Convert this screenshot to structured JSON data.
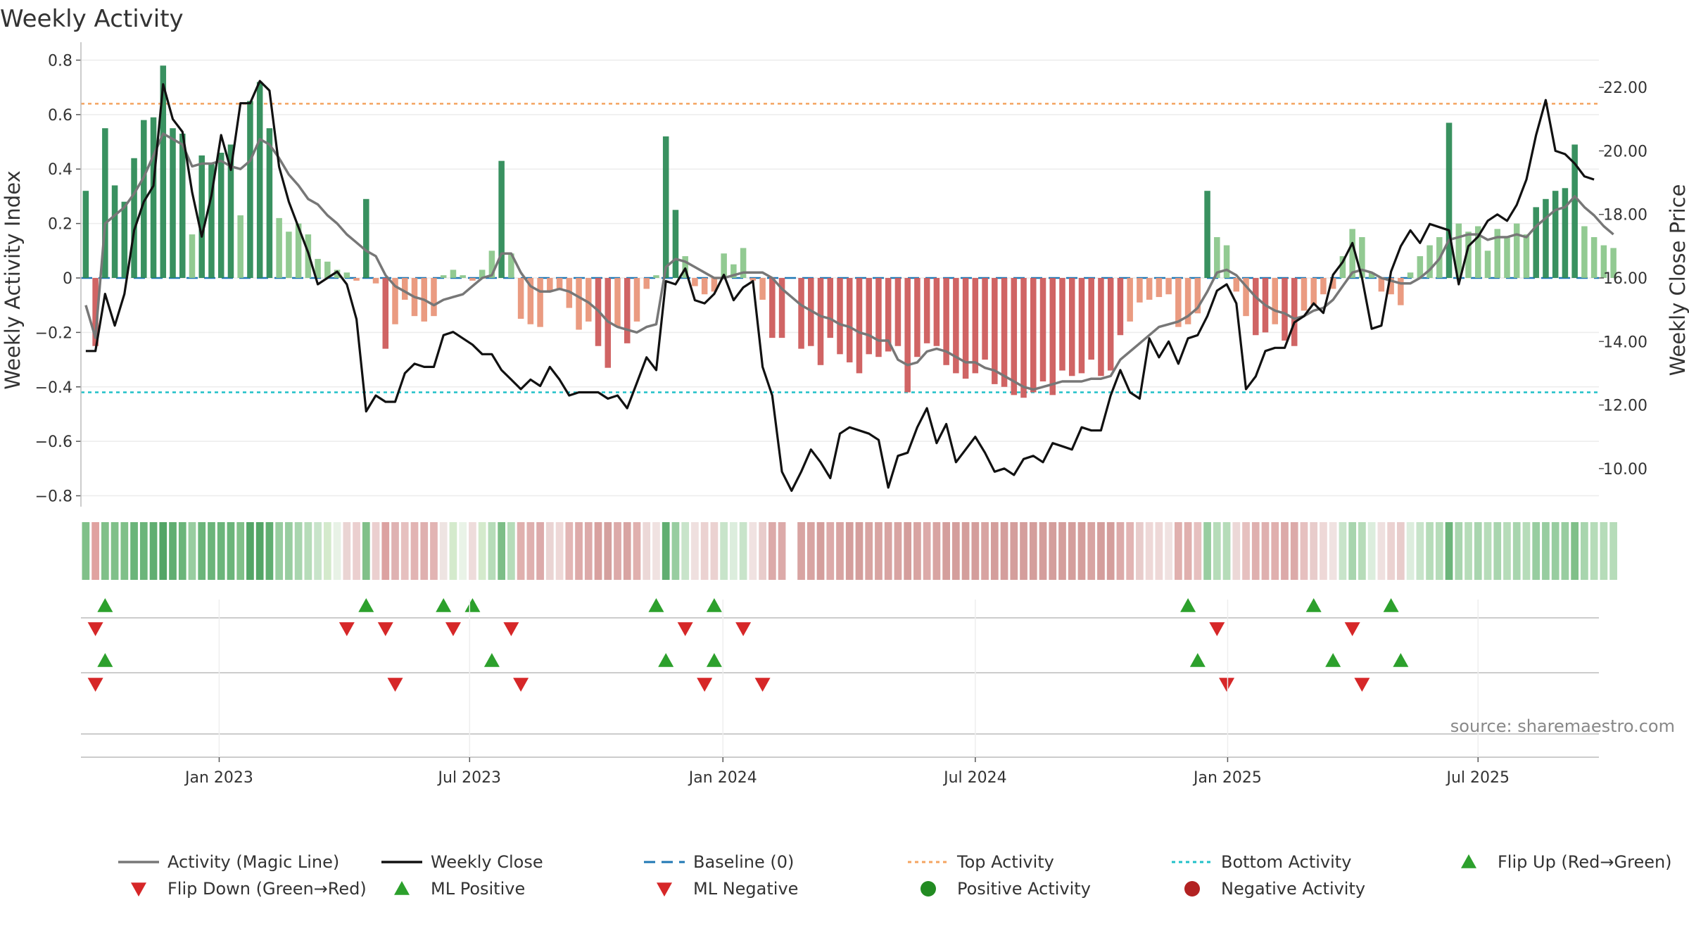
{
  "chart_data": {
    "type": "bar",
    "title": "Weekly Activity",
    "ylabel": "Weekly Activity Index",
    "y2label": "Weekly Close Price",
    "ylim": [
      -0.84,
      0.84
    ],
    "y2lim": [
      8.8,
      23.2
    ],
    "yticks": [
      0.8,
      0.6,
      0.4,
      0.2,
      0,
      -0.2,
      -0.4,
      -0.6,
      -0.8
    ],
    "ytick_labels": [
      "0.8",
      "0.6",
      "0.4",
      "0.2",
      "0",
      "−0.2",
      "−0.4",
      "−0.6",
      "−0.8"
    ],
    "y2ticks": [
      22,
      20,
      18,
      16,
      14,
      12,
      10
    ],
    "y2tick_labels": [
      "22.00",
      "20.00",
      "18.00",
      "16.00",
      "14.00",
      "12.00",
      "10.00"
    ],
    "x_range": [
      0,
      157
    ],
    "xticks": [
      {
        "label": "Jan 2023",
        "x": 14.3
      },
      {
        "label": "Jul 2023",
        "x": 40.2
      },
      {
        "label": "Jan 2024",
        "x": 66.4
      },
      {
        "label": "Jul 2024",
        "x": 92.5
      },
      {
        "label": "Jan 2025",
        "x": 118.6
      },
      {
        "label": "Jul 2025",
        "x": 144.5
      }
    ],
    "top_activity": 0.64,
    "bottom_activity": -0.42,
    "baseline": 0,
    "series": [
      {
        "name": "Weekly Activity",
        "values": [
          0.32,
          -0.25,
          0.55,
          0.34,
          0.28,
          0.44,
          0.58,
          0.59,
          0.78,
          0.55,
          0.53,
          0.16,
          0.45,
          0.42,
          0.46,
          0.49,
          0.23,
          0.65,
          0.72,
          0.55,
          0.22,
          0.17,
          0.2,
          0.16,
          0.07,
          0.06,
          0.03,
          0.02,
          -0.01,
          0.29,
          -0.02,
          -0.26,
          -0.17,
          -0.08,
          -0.14,
          -0.16,
          -0.14,
          0.01,
          0.03,
          0.01,
          -0.01,
          0.03,
          0.1,
          0.43,
          0.09,
          -0.15,
          -0.17,
          -0.18,
          -0.05,
          -0.04,
          -0.11,
          -0.19,
          -0.16,
          -0.25,
          -0.33,
          -0.18,
          -0.24,
          -0.16,
          -0.04,
          0.01,
          0.52,
          0.25,
          0.08,
          -0.03,
          -0.06,
          -0.05,
          0.09,
          0.05,
          0.11,
          -0.01,
          -0.08,
          -0.22,
          -0.22,
          null,
          -0.26,
          -0.25,
          -0.32,
          -0.22,
          -0.28,
          -0.31,
          -0.35,
          -0.28,
          -0.29,
          -0.27,
          -0.25,
          -0.42,
          -0.29,
          -0.24,
          -0.25,
          -0.32,
          -0.35,
          -0.37,
          -0.35,
          -0.3,
          -0.39,
          -0.4,
          -0.43,
          -0.44,
          -0.42,
          -0.38,
          -0.43,
          -0.34,
          -0.36,
          -0.35,
          -0.3,
          -0.36,
          -0.34,
          -0.21,
          -0.16,
          -0.09,
          -0.08,
          -0.07,
          -0.06,
          -0.18,
          -0.17,
          -0.13,
          0.32,
          0.15,
          0.12,
          -0.05,
          -0.14,
          -0.21,
          -0.2,
          -0.17,
          -0.23,
          -0.25,
          -0.12,
          -0.1,
          -0.06,
          -0.04,
          0.08,
          0.18,
          0.15,
          0.02,
          -0.05,
          -0.06,
          -0.1,
          0.02,
          0.08,
          0.12,
          0.15,
          0.57,
          0.2,
          0.17,
          0.19,
          0.1,
          0.18,
          0.15,
          0.2,
          0.16,
          0.26,
          0.29,
          0.32,
          0.33,
          0.49,
          0.19,
          0.15,
          0.12,
          0.11
        ]
      },
      {
        "name": "Activity (Magic Line)",
        "values": [
          -0.1,
          -0.22,
          0.2,
          0.23,
          0.26,
          0.31,
          0.37,
          0.45,
          0.53,
          0.51,
          0.49,
          0.41,
          0.42,
          0.42,
          0.43,
          0.41,
          0.4,
          0.43,
          0.51,
          0.49,
          0.44,
          0.38,
          0.34,
          0.29,
          0.27,
          0.23,
          0.2,
          0.16,
          0.13,
          0.1,
          0.08,
          0.01,
          -0.03,
          -0.05,
          -0.07,
          -0.08,
          -0.1,
          -0.08,
          -0.07,
          -0.06,
          -0.03,
          0,
          0.01,
          0.09,
          0.09,
          0.02,
          -0.03,
          -0.05,
          -0.05,
          -0.04,
          -0.05,
          -0.07,
          -0.09,
          -0.12,
          -0.16,
          -0.18,
          -0.19,
          -0.2,
          -0.18,
          -0.17,
          0.04,
          0.07,
          0.06,
          0.04,
          0.02,
          0,
          0,
          0.01,
          0.02,
          0.02,
          0.02,
          0,
          -0.04,
          -0.07,
          -0.1,
          -0.12,
          -0.14,
          -0.15,
          -0.17,
          -0.18,
          -0.2,
          -0.21,
          -0.23,
          -0.23,
          -0.3,
          -0.32,
          -0.31,
          -0.27,
          -0.26,
          -0.27,
          -0.29,
          -0.31,
          -0.31,
          -0.33,
          -0.34,
          -0.36,
          -0.38,
          -0.4,
          -0.41,
          -0.4,
          -0.39,
          -0.38,
          -0.38,
          -0.38,
          -0.37,
          -0.37,
          -0.36,
          -0.3,
          -0.27,
          -0.24,
          -0.21,
          -0.18,
          -0.17,
          -0.16,
          -0.14,
          -0.11,
          -0.05,
          0.02,
          0.03,
          0.01,
          -0.03,
          -0.07,
          -0.1,
          -0.12,
          -0.13,
          -0.15,
          -0.14,
          -0.12,
          -0.11,
          -0.08,
          -0.03,
          0.02,
          0.03,
          0.02,
          0,
          -0.01,
          -0.02,
          -0.02,
          0,
          0.03,
          0.07,
          0.14,
          0.15,
          0.16,
          0.16,
          0.14,
          0.15,
          0.15,
          0.16,
          0.15,
          0.19,
          0.22,
          0.25,
          0.26,
          0.3,
          0.26,
          0.23,
          0.19,
          0.16
        ]
      },
      {
        "name": "Weekly Close",
        "values": [
          13.7,
          13.7,
          15.5,
          14.5,
          15.5,
          17.5,
          18.4,
          18.9,
          22.1,
          21,
          20.6,
          18.7,
          17.3,
          18.6,
          20.5,
          19.4,
          21.5,
          21.5,
          22.2,
          21.9,
          19.5,
          18.4,
          17.6,
          16.8,
          15.8,
          16,
          16.2,
          15.8,
          14.7,
          11.8,
          12.3,
          12.1,
          12.1,
          13,
          13.3,
          13.2,
          13.2,
          14.2,
          14.3,
          14.1,
          13.9,
          13.6,
          13.6,
          13.1,
          12.8,
          12.5,
          12.8,
          12.6,
          13.2,
          12.8,
          12.3,
          12.4,
          12.4,
          12.4,
          12.2,
          12.3,
          11.9,
          12.7,
          13.5,
          13.1,
          15.9,
          15.8,
          16.3,
          15.3,
          15.2,
          15.5,
          16.1,
          15.3,
          15.7,
          15.9,
          13.2,
          12.3,
          9.9,
          9.3,
          9.9,
          10.6,
          10.2,
          9.7,
          11.1,
          11.3,
          11.2,
          11.1,
          10.9,
          9.4,
          10.4,
          10.5,
          11.3,
          11.9,
          10.8,
          11.4,
          10.2,
          10.6,
          11,
          10.5,
          9.9,
          10,
          9.8,
          10.3,
          10.4,
          10.2,
          10.8,
          10.7,
          10.6,
          11.3,
          11.2,
          11.2,
          12.3,
          13.1,
          12.4,
          12.2,
          14.1,
          13.5,
          14,
          13.3,
          14.1,
          14.2,
          14.8,
          15.6,
          15.8,
          15.2,
          12.5,
          12.9,
          13.7,
          13.8,
          13.8,
          14.6,
          14.8,
          15.2,
          14.9,
          16.1,
          16.5,
          17.1,
          16,
          14.4,
          14.5,
          16.2,
          17,
          17.5,
          17.1,
          17.7,
          17.6,
          17.5,
          15.8,
          17,
          17.3,
          17.8,
          18,
          17.8,
          18.3,
          19.1,
          20.5,
          21.6,
          20,
          19.9,
          19.6,
          19.2,
          19.1
        ]
      }
    ],
    "strip_colors": [
      "#80c089",
      "#e0a2a0",
      "#80c089",
      "#80c089",
      "#80c089",
      "#6bb57a",
      "#6bb57a",
      "#60ae71",
      "#53a566",
      "#60ae71",
      "#6bb57a",
      "#98cda0",
      "#6bb57a",
      "#6bb57a",
      "#6bb57a",
      "#6bb57a",
      "#80c089",
      "#53a566",
      "#53a566",
      "#60ae71",
      "#98cda0",
      "#98cda0",
      "#a8d5ae",
      "#b6dcb9",
      "#c8e4ca",
      "#d4eacc",
      "#e8f2e6",
      "#ead4d3",
      "#ebcfcf",
      "#80c089",
      "#ebcfcf",
      "#dca2a1",
      "#dfb2b2",
      "#e6c0bf",
      "#e2b4b3",
      "#dfb0af",
      "#e2b4b3",
      "#eee4e2",
      "#d4eacc",
      "#e9f3e7",
      "#eedcdb",
      "#d4eacc",
      "#b6dcb9",
      "#7dbe87",
      "#b6dcb9",
      "#e0b0ae",
      "#dfb0af",
      "#dcaaaa",
      "#ead4d3",
      "#eed8d7",
      "#e3b6b5",
      "#ddaaa9",
      "#dcaaa9",
      "#d8a19f",
      "#d4a09e",
      "#dcaaa9",
      "#d8a4a2",
      "#e0b0ae",
      "#ecd8d7",
      "#f0e2e1",
      "#60ae71",
      "#98cda0",
      "#c8e4ca",
      "#efe0df",
      "#ebd2d1",
      "#ebd2d1",
      "#c8e4ca",
      "#dceddd",
      "#c8e4ca",
      "#f0e2e1",
      "#e8cccb",
      "#dcaaa9",
      "#dcaaa9",
      null,
      "#d8a4a2",
      "#d8a4a2",
      "#d49e9c",
      "#dcaaa9",
      "#d8a4a2",
      "#d49e9c",
      "#d49e9c",
      "#d8a4a2",
      "#d8a4a2",
      "#d8a4a2",
      "#d8a4a2",
      "#d49e9c",
      "#d8a4a2",
      "#dcaaa9",
      "#d8a4a2",
      "#d49e9c",
      "#d49e9c",
      "#d49e9c",
      "#d49e9c",
      "#d8a4a2",
      "#d49e9c",
      "#d49e9c",
      "#d49e9c",
      "#d49e9c",
      "#d49e9c",
      "#d49e9c",
      "#d49e9c",
      "#d49e9c",
      "#d49e9c",
      "#d49e9c",
      "#d8a4a2",
      "#d49e9c",
      "#d49e9c",
      "#dcaaa9",
      "#e2b4b3",
      "#e8cccb",
      "#eed8d7",
      "#eed8d7",
      "#f0e2e1",
      "#e0b0ae",
      "#e0b0ae",
      "#e6c0bf",
      "#98cda0",
      "#b6dcb9",
      "#b6dcb9",
      "#ecd8d7",
      "#e6c0bf",
      "#dfb0af",
      "#dfb0af",
      "#e0b0ae",
      "#dcaaa9",
      "#dcaaa9",
      "#e6c0bf",
      "#e8cccb",
      "#eed8d7",
      "#f0e2e1",
      "#c8e4ca",
      "#a8d5ae",
      "#b6dcb9",
      "#dceddd",
      "#efe0df",
      "#ebd2d1",
      "#e8cccb",
      "#dceddd",
      "#c8e4ca",
      "#b6dcb9",
      "#b6dcb9",
      "#6bb57a",
      "#a8d5ae",
      "#b6dcb9",
      "#a8d5ae",
      "#b6dcb9",
      "#a8d5ae",
      "#b6dcb9",
      "#a8d5ae",
      "#b6dcb9",
      "#98cda0",
      "#98cda0",
      "#98cda0",
      "#98cda0",
      "#80c089",
      "#a8d5ae",
      "#b6dcb9",
      "#b6dcb9",
      "#b6dcb9"
    ],
    "flip_up_1": [
      2,
      29,
      37,
      40,
      59,
      65,
      114,
      127,
      135
    ],
    "flip_down_1": [
      1,
      27,
      31,
      38,
      44,
      62,
      68,
      117,
      131
    ],
    "ml_positive": [
      2,
      42,
      60,
      65,
      115,
      129,
      136
    ],
    "ml_negative": [
      1,
      32,
      45,
      64,
      70,
      118,
      132
    ],
    "legend": [
      {
        "label": "Activity (Magic Line)",
        "kind": "line",
        "color": "#777777"
      },
      {
        "label": "Weekly Close",
        "kind": "line",
        "color": "#111111"
      },
      {
        "label": "Baseline (0)",
        "kind": "dash",
        "color": "#1f77b4"
      },
      {
        "label": "Top Activity",
        "kind": "dot",
        "color": "#f4a460"
      },
      {
        "label": "Bottom Activity",
        "kind": "dot",
        "color": "#20c0c8"
      },
      {
        "label": "Flip Up (Red→Green)",
        "kind": "up",
        "color": "#2ca02c"
      },
      {
        "label": "Flip Down (Green→Red)",
        "kind": "down",
        "color": "#d62728"
      },
      {
        "label": "ML Positive",
        "kind": "up",
        "color": "#2ca02c"
      },
      {
        "label": "ML Negative",
        "kind": "down",
        "color": "#d62728"
      },
      {
        "label": "Positive Activity",
        "kind": "circle",
        "color": "#228b22"
      },
      {
        "label": "Negative Activity",
        "kind": "circle",
        "color": "#b22222"
      }
    ],
    "source": "source: sharemaestro.com"
  },
  "colors": {
    "pos_strong": "#2e8b57",
    "pos_weak": "#8cc78c",
    "neg_strong": "#cd5c5c",
    "neg_weak": "#e9967a",
    "magic_line": "#777777",
    "close_line": "#111111",
    "baseline": "#1f77b4",
    "top": "#f4a460",
    "bottom": "#20c0c8",
    "marker_up": "#2ca02c",
    "marker_down": "#d62728"
  }
}
